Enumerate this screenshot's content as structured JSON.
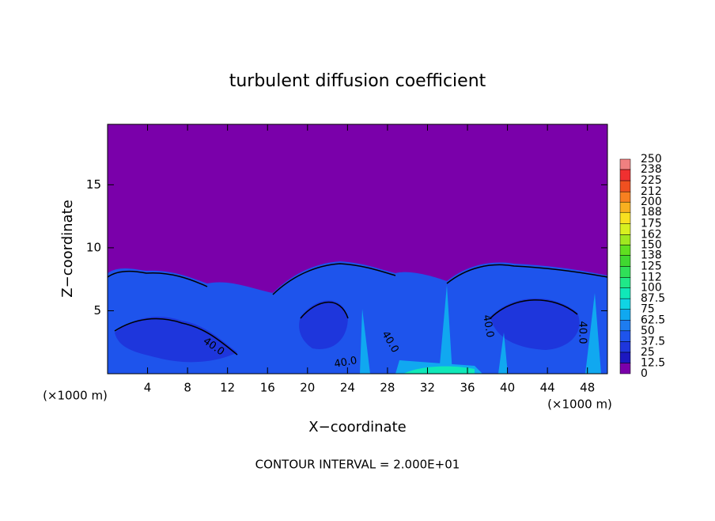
{
  "chart_data": {
    "type": "contour",
    "title": "turbulent diffusion coefficient",
    "x_label": "X−coordinate",
    "y_label": "Z−coordinate",
    "x_unit": "(×1000 m)",
    "y_unit": "(×1000 m)",
    "footer": "CONTOUR INTERVAL = 2.000E+01",
    "xlim": [
      0,
      50
    ],
    "xticks": [
      4,
      8,
      12,
      16,
      20,
      24,
      28,
      32,
      36,
      40,
      44,
      48
    ],
    "ylim": [
      0,
      19.8
    ],
    "yticks": [
      5,
      10,
      15
    ],
    "contour_labels": [
      "40.0",
      "40.0",
      "40.0",
      "40.0",
      "40.0"
    ],
    "colorbar": {
      "levels": [
        0,
        12.5,
        25,
        37.5,
        50,
        62.5,
        75,
        87.5,
        100,
        112,
        125,
        138,
        150,
        162,
        175,
        188,
        200,
        212,
        225,
        238,
        250
      ],
      "colors": [
        "#7a00aa",
        "#1c18c0",
        "#1e36dc",
        "#1e54ec",
        "#1e7cf0",
        "#10a8f0",
        "#10d4e4",
        "#10e8b8",
        "#20e888",
        "#30e058",
        "#40d830",
        "#60e020",
        "#a0e820",
        "#d8f020",
        "#f8e020",
        "#f8b020",
        "#f88020",
        "#f05020",
        "#f03030",
        "#f08080"
      ]
    }
  }
}
